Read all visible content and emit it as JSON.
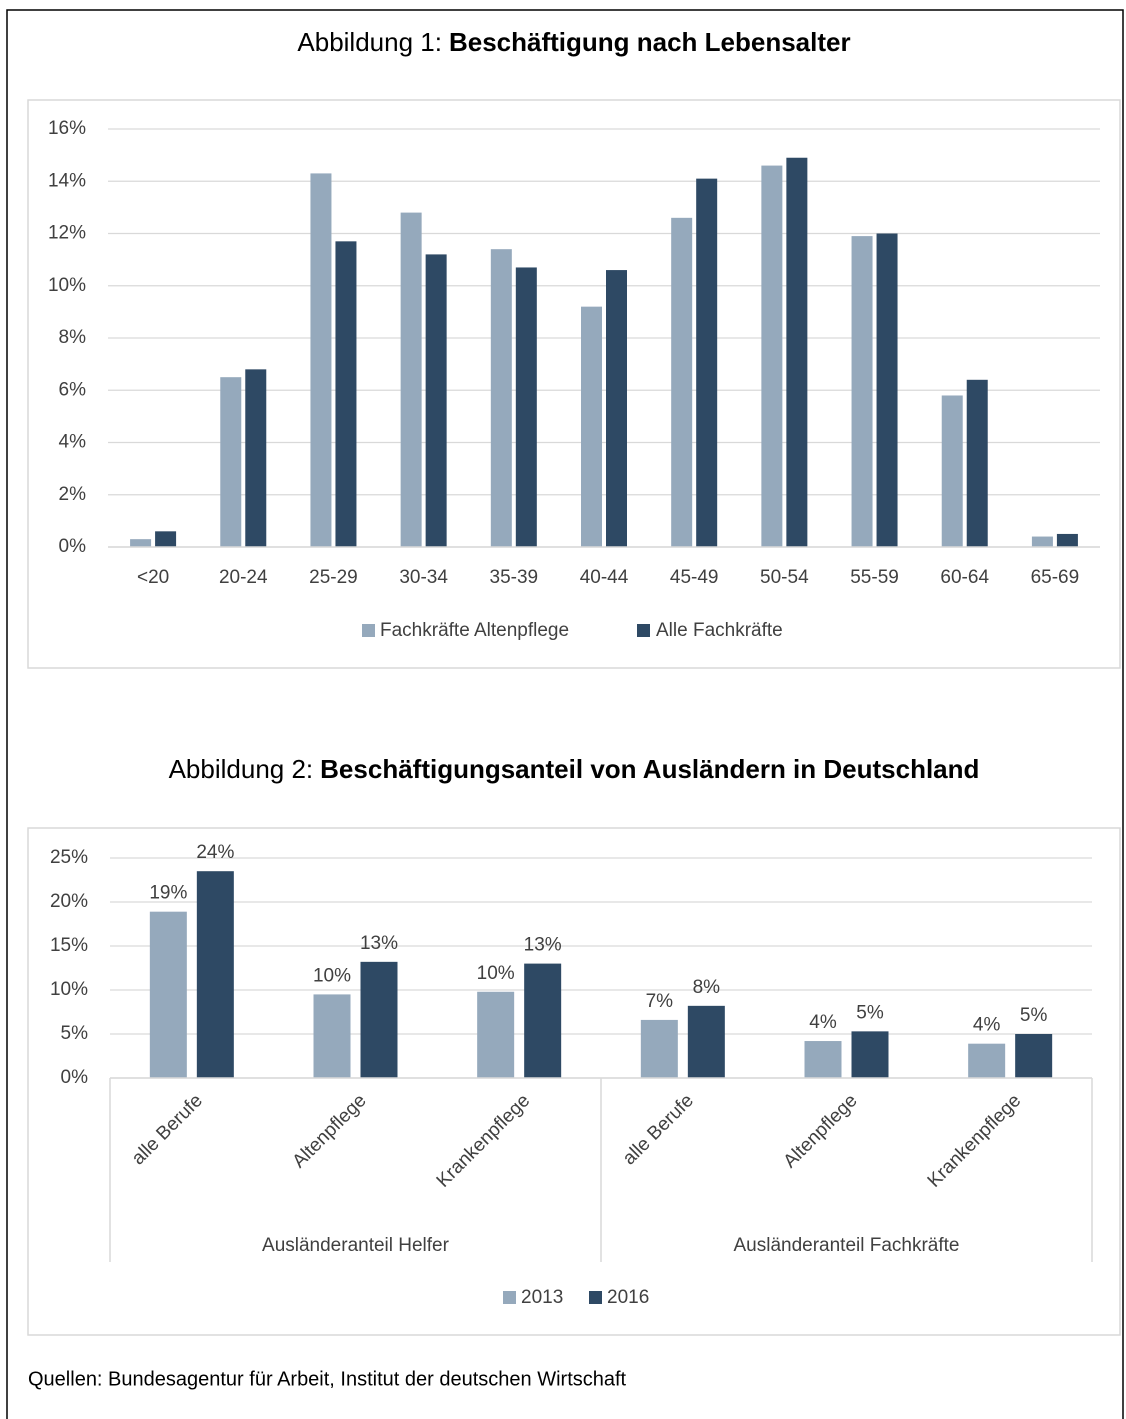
{
  "chart_data": [
    {
      "type": "bar",
      "figure_label": "Abbildung 1:",
      "title": "Beschäftigung nach Lebensalter",
      "categories": [
        "<20",
        "20-24",
        "25-29",
        "30-34",
        "35-39",
        "40-44",
        "45-49",
        "50-54",
        "55-59",
        "60-64",
        "65-69"
      ],
      "series": [
        {
          "name": "Fachkräfte Altenpflege",
          "color": "#95a9bc",
          "values": [
            0.3,
            6.5,
            14.3,
            12.8,
            11.4,
            9.2,
            12.6,
            14.6,
            11.9,
            5.8,
            0.4
          ]
        },
        {
          "name": "Alle Fachkräfte",
          "color": "#2e4964",
          "values": [
            0.6,
            6.8,
            11.7,
            11.2,
            10.7,
            10.6,
            14.1,
            14.9,
            12.0,
            6.4,
            0.5
          ]
        }
      ],
      "ylim": [
        0,
        16
      ],
      "yticks": [
        {
          "value": 0,
          "label": "0%"
        },
        {
          "value": 2,
          "label": "2%"
        },
        {
          "value": 4,
          "label": "4%"
        },
        {
          "value": 6,
          "label": "6%"
        },
        {
          "value": 8,
          "label": "8%"
        },
        {
          "value": 10,
          "label": "10%"
        },
        {
          "value": 12,
          "label": "12%"
        },
        {
          "value": 14,
          "label": "14%"
        },
        {
          "value": 16,
          "label": "16%"
        }
      ],
      "grid": true,
      "legend": "bottom"
    },
    {
      "type": "bar",
      "figure_label": "Abbildung 2:",
      "title": "Beschäftigungsanteil von Ausländern in Deutschland",
      "categories": [
        "alle Berufe",
        "Altenpflege",
        "Krankenpflege",
        "alle Berufe",
        "Altenpflege",
        "Krankenpflege"
      ],
      "category_groups": [
        {
          "label": "Ausländeranteil Helfer",
          "count": 3
        },
        {
          "label": "Ausländeranteil Fachkräfte",
          "count": 3
        }
      ],
      "series": [
        {
          "name": "2013",
          "color": "#95a9bc",
          "values": [
            18.9,
            9.5,
            9.8,
            6.6,
            4.2,
            3.9
          ],
          "value_labels": [
            "19%",
            "10%",
            "10%",
            "7%",
            "4%",
            "4%"
          ]
        },
        {
          "name": "2016",
          "color": "#2e4964",
          "values": [
            23.5,
            13.2,
            13.0,
            8.2,
            5.3,
            5.0
          ],
          "value_labels": [
            "24%",
            "13%",
            "13%",
            "8%",
            "5%",
            "5%"
          ]
        }
      ],
      "ylim": [
        0,
        25
      ],
      "yticks": [
        {
          "value": 0,
          "label": "0%"
        },
        {
          "value": 5,
          "label": "5%"
        },
        {
          "value": 10,
          "label": "10%"
        },
        {
          "value": 15,
          "label": "15%"
        },
        {
          "value": 20,
          "label": "20%"
        },
        {
          "value": 25,
          "label": "25%"
        }
      ],
      "grid": true,
      "legend": "bottom"
    }
  ],
  "source": "Quellen: Bundesagentur für Arbeit, Institut der deutschen Wirtschaft"
}
